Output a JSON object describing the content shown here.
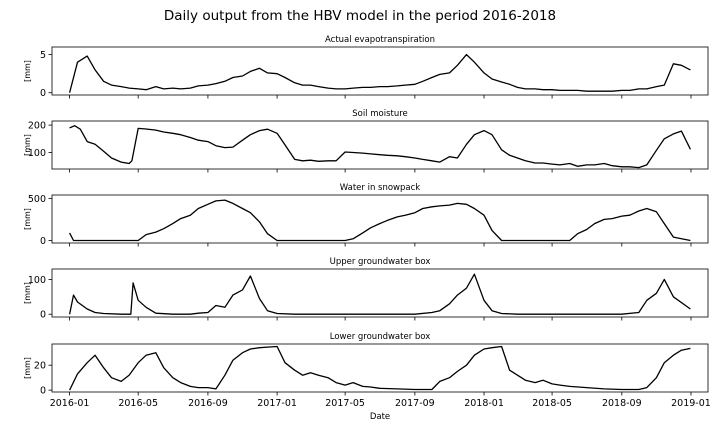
{
  "suptitle": "Daily output from the HBV model in the period 2016-2018",
  "xlabel": "Date",
  "chart_data": [
    {
      "type": "line",
      "title": "Actual evapotranspiration",
      "ylabel": "[mm]",
      "yticks": [
        0,
        5
      ],
      "ylim": [
        -0.3,
        6.0
      ],
      "x": [
        "2016-01-01",
        "2016-01-15",
        "2016-02-01",
        "2016-02-15",
        "2016-03-01",
        "2016-03-15",
        "2016-04-01",
        "2016-04-15",
        "2016-05-01",
        "2016-05-15",
        "2016-06-01",
        "2016-06-15",
        "2016-07-01",
        "2016-07-15",
        "2016-08-01",
        "2016-08-15",
        "2016-09-01",
        "2016-09-15",
        "2016-10-01",
        "2016-10-15",
        "2016-11-01",
        "2016-11-15",
        "2016-12-01",
        "2016-12-15",
        "2017-01-01",
        "2017-01-15",
        "2017-02-01",
        "2017-02-15",
        "2017-03-01",
        "2017-03-15",
        "2017-04-01",
        "2017-04-15",
        "2017-05-01",
        "2017-05-15",
        "2017-06-01",
        "2017-06-15",
        "2017-07-01",
        "2017-07-15",
        "2017-08-01",
        "2017-08-15",
        "2017-09-01",
        "2017-09-15",
        "2017-10-01",
        "2017-10-15",
        "2017-11-01",
        "2017-11-15",
        "2017-12-01",
        "2017-12-15",
        "2018-01-01",
        "2018-01-15",
        "2018-02-01",
        "2018-02-15",
        "2018-03-01",
        "2018-03-15",
        "2018-04-01",
        "2018-04-15",
        "2018-05-01",
        "2018-05-15",
        "2018-06-01",
        "2018-06-15",
        "2018-07-01",
        "2018-07-15",
        "2018-08-01",
        "2018-08-15",
        "2018-09-01",
        "2018-09-15",
        "2018-10-01",
        "2018-10-15",
        "2018-11-01",
        "2018-11-15",
        "2018-12-01",
        "2018-12-15",
        "2018-12-31"
      ],
      "y": [
        0.0,
        4.0,
        4.8,
        3.0,
        1.5,
        1.0,
        0.8,
        0.6,
        0.5,
        0.4,
        0.8,
        0.5,
        0.6,
        0.5,
        0.6,
        0.9,
        1.0,
        1.2,
        1.5,
        2.0,
        2.2,
        2.8,
        3.2,
        2.6,
        2.5,
        2.0,
        1.3,
        1.0,
        1.0,
        0.8,
        0.6,
        0.5,
        0.5,
        0.6,
        0.7,
        0.7,
        0.8,
        0.8,
        0.9,
        1.0,
        1.1,
        1.5,
        2.0,
        2.4,
        2.6,
        3.6,
        5.0,
        4.0,
        2.6,
        1.8,
        1.4,
        1.1,
        0.7,
        0.5,
        0.5,
        0.4,
        0.4,
        0.3,
        0.3,
        0.3,
        0.2,
        0.2,
        0.2,
        0.2,
        0.3,
        0.3,
        0.5,
        0.5,
        0.8,
        1.0,
        3.8,
        3.6,
        3.0
      ]
    },
    {
      "type": "line",
      "title": "Soil moisture",
      "ylabel": "[mm]",
      "yticks": [
        100,
        200
      ],
      "ylim": [
        40,
        215
      ],
      "x": [
        "2016-01-01",
        "2016-01-10",
        "2016-01-20",
        "2016-02-01",
        "2016-02-15",
        "2016-03-01",
        "2016-03-15",
        "2016-04-01",
        "2016-04-15",
        "2016-04-20",
        "2016-05-01",
        "2016-05-15",
        "2016-06-01",
        "2016-06-15",
        "2016-07-01",
        "2016-07-15",
        "2016-08-01",
        "2016-08-15",
        "2016-09-01",
        "2016-09-15",
        "2016-10-01",
        "2016-10-15",
        "2016-11-01",
        "2016-11-15",
        "2016-12-01",
        "2016-12-15",
        "2017-01-01",
        "2017-01-15",
        "2017-02-01",
        "2017-02-15",
        "2017-03-01",
        "2017-03-15",
        "2017-04-01",
        "2017-04-15",
        "2017-05-01",
        "2017-05-15",
        "2017-06-01",
        "2017-06-15",
        "2017-07-01",
        "2017-07-15",
        "2017-08-01",
        "2017-08-15",
        "2017-09-01",
        "2017-09-15",
        "2017-10-01",
        "2017-10-15",
        "2017-11-01",
        "2017-11-15",
        "2017-12-01",
        "2017-12-15",
        "2018-01-01",
        "2018-01-15",
        "2018-02-01",
        "2018-02-15",
        "2018-03-01",
        "2018-03-15",
        "2018-04-01",
        "2018-04-15",
        "2018-05-01",
        "2018-05-15",
        "2018-06-01",
        "2018-06-15",
        "2018-07-01",
        "2018-07-15",
        "2018-08-01",
        "2018-08-15",
        "2018-09-01",
        "2018-09-15",
        "2018-10-01",
        "2018-10-15",
        "2018-11-01",
        "2018-11-15",
        "2018-12-01",
        "2018-12-15",
        "2018-12-31"
      ],
      "y": [
        190,
        198,
        185,
        140,
        130,
        105,
        80,
        65,
        60,
        70,
        188,
        186,
        182,
        175,
        170,
        165,
        155,
        145,
        140,
        125,
        118,
        120,
        145,
        165,
        180,
        185,
        170,
        128,
        75,
        70,
        72,
        68,
        70,
        70,
        102,
        100,
        98,
        95,
        92,
        90,
        88,
        85,
        80,
        75,
        70,
        65,
        85,
        80,
        130,
        165,
        180,
        165,
        110,
        90,
        80,
        70,
        62,
        62,
        58,
        55,
        60,
        50,
        55,
        55,
        60,
        52,
        48,
        48,
        45,
        55,
        108,
        150,
        168,
        178,
        112
      ]
    },
    {
      "type": "line",
      "title": "Water in snowpack",
      "ylabel": "[mm]",
      "yticks": [
        0,
        500
      ],
      "ylim": [
        -30,
        540
      ],
      "x": [
        "2016-01-01",
        "2016-01-08",
        "2016-02-01",
        "2016-03-01",
        "2016-04-01",
        "2016-05-01",
        "2016-05-15",
        "2016-06-01",
        "2016-06-15",
        "2016-07-01",
        "2016-07-15",
        "2016-08-01",
        "2016-08-15",
        "2016-09-01",
        "2016-09-15",
        "2016-10-01",
        "2016-10-15",
        "2016-11-01",
        "2016-11-15",
        "2016-12-01",
        "2016-12-15",
        "2017-01-01",
        "2017-02-01",
        "2017-03-01",
        "2017-04-01",
        "2017-05-01",
        "2017-05-15",
        "2017-06-01",
        "2017-06-15",
        "2017-07-01",
        "2017-07-15",
        "2017-08-01",
        "2017-08-15",
        "2017-09-01",
        "2017-09-15",
        "2017-10-01",
        "2017-10-15",
        "2017-11-01",
        "2017-11-15",
        "2017-12-01",
        "2017-12-15",
        "2018-01-01",
        "2018-01-15",
        "2018-02-01",
        "2018-03-01",
        "2018-04-01",
        "2018-05-01",
        "2018-06-01",
        "2018-06-15",
        "2018-07-01",
        "2018-07-15",
        "2018-08-01",
        "2018-08-15",
        "2018-09-01",
        "2018-09-15",
        "2018-10-01",
        "2018-10-15",
        "2018-11-01",
        "2018-11-15",
        "2018-12-01",
        "2018-12-31"
      ],
      "y": [
        90,
        0,
        0,
        0,
        0,
        0,
        70,
        100,
        140,
        200,
        260,
        300,
        380,
        430,
        470,
        480,
        440,
        380,
        330,
        220,
        80,
        0,
        0,
        0,
        0,
        0,
        20,
        90,
        150,
        200,
        240,
        280,
        300,
        330,
        380,
        400,
        410,
        420,
        440,
        430,
        380,
        300,
        120,
        0,
        0,
        0,
        0,
        0,
        80,
        130,
        200,
        250,
        260,
        290,
        300,
        350,
        380,
        340,
        200,
        40,
        0
      ]
    },
    {
      "type": "line",
      "title": "Upper groundwater box",
      "ylabel": "[mm]",
      "yticks": [
        0,
        100
      ],
      "ylim": [
        -8,
        130
      ],
      "x": [
        "2016-01-01",
        "2016-01-08",
        "2016-01-15",
        "2016-02-01",
        "2016-02-15",
        "2016-03-01",
        "2016-04-01",
        "2016-04-18",
        "2016-04-22",
        "2016-05-01",
        "2016-05-15",
        "2016-06-01",
        "2016-07-01",
        "2016-08-01",
        "2016-08-15",
        "2016-09-01",
        "2016-09-15",
        "2016-10-01",
        "2016-10-15",
        "2016-11-01",
        "2016-11-15",
        "2016-12-01",
        "2016-12-15",
        "2017-01-01",
        "2017-02-01",
        "2017-03-01",
        "2017-04-01",
        "2017-05-01",
        "2017-06-01",
        "2017-07-01",
        "2017-08-01",
        "2017-09-01",
        "2017-10-01",
        "2017-10-15",
        "2017-11-01",
        "2017-11-15",
        "2017-12-01",
        "2017-12-15",
        "2018-01-01",
        "2018-01-15",
        "2018-02-01",
        "2018-03-01",
        "2018-04-01",
        "2018-05-01",
        "2018-06-01",
        "2018-07-01",
        "2018-08-01",
        "2018-09-01",
        "2018-10-01",
        "2018-10-15",
        "2018-11-01",
        "2018-11-15",
        "2018-12-01",
        "2018-12-31"
      ],
      "y": [
        0,
        55,
        35,
        15,
        5,
        2,
        0,
        0,
        90,
        40,
        20,
        3,
        0,
        0,
        3,
        5,
        25,
        20,
        55,
        70,
        110,
        45,
        10,
        2,
        0,
        0,
        0,
        0,
        0,
        0,
        0,
        0,
        5,
        10,
        30,
        55,
        75,
        115,
        40,
        10,
        2,
        0,
        0,
        0,
        0,
        0,
        0,
        0,
        5,
        40,
        60,
        100,
        50,
        15
      ]
    },
    {
      "type": "line",
      "title": "Lower groundwater box",
      "ylabel": "[mm]",
      "yticks": [
        0,
        20
      ],
      "ylim": [
        -1.5,
        37
      ],
      "x": [
        "2016-01-01",
        "2016-01-15",
        "2016-02-01",
        "2016-02-15",
        "2016-03-01",
        "2016-03-15",
        "2016-04-01",
        "2016-04-15",
        "2016-05-01",
        "2016-05-15",
        "2016-06-01",
        "2016-06-15",
        "2016-07-01",
        "2016-07-15",
        "2016-08-01",
        "2016-08-15",
        "2016-09-01",
        "2016-09-15",
        "2016-10-01",
        "2016-10-15",
        "2016-11-01",
        "2016-11-15",
        "2016-12-01",
        "2016-12-15",
        "2017-01-01",
        "2017-01-15",
        "2017-02-01",
        "2017-02-15",
        "2017-03-01",
        "2017-03-15",
        "2017-04-01",
        "2017-04-15",
        "2017-05-01",
        "2017-05-15",
        "2017-06-01",
        "2017-06-15",
        "2017-07-01",
        "2017-08-01",
        "2017-09-01",
        "2017-09-15",
        "2017-10-01",
        "2017-10-15",
        "2017-11-01",
        "2017-11-15",
        "2017-12-01",
        "2017-12-15",
        "2018-01-01",
        "2018-01-15",
        "2018-02-01",
        "2018-02-15",
        "2018-03-01",
        "2018-03-15",
        "2018-04-01",
        "2018-04-15",
        "2018-05-01",
        "2018-05-15",
        "2018-06-01",
        "2018-07-01",
        "2018-08-01",
        "2018-09-01",
        "2018-10-01",
        "2018-10-15",
        "2018-11-01",
        "2018-11-15",
        "2018-12-01",
        "2018-12-15",
        "2018-12-31"
      ],
      "y": [
        0,
        13,
        22,
        28,
        18,
        10,
        7,
        12,
        22,
        28,
        30,
        18,
        10,
        6,
        3,
        2,
        2,
        1,
        12,
        24,
        30,
        33,
        34,
        34.5,
        35,
        22,
        16,
        12,
        14,
        12,
        10,
        6,
        4,
        6,
        3,
        2.5,
        1.5,
        1,
        0.5,
        0.5,
        0.5,
        7,
        10,
        15,
        20,
        28,
        33,
        34,
        35,
        16,
        12,
        8,
        6,
        8,
        5,
        4,
        3,
        2,
        1,
        0.5,
        0.5,
        2,
        10,
        22,
        28,
        32,
        33.5
      ]
    }
  ],
  "xaxis": {
    "start": "2015-12-01",
    "end": "2019-01-31",
    "ticks": [
      "2016-01",
      "2016-05",
      "2016-09",
      "2017-01",
      "2017-05",
      "2017-09",
      "2018-01",
      "2018-05",
      "2018-09",
      "2019-01"
    ]
  }
}
